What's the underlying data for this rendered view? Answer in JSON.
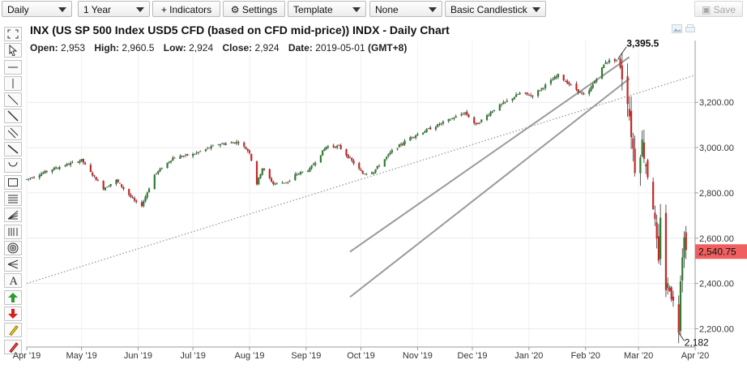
{
  "toolbar": {
    "interval": "Daily",
    "range": "1 Year",
    "indicators_label": "+ Indicators",
    "settings_label": "Settings",
    "template": "Template",
    "compare": "None",
    "chart_style": "Basic Candlestick",
    "save_label": "Save"
  },
  "header": {
    "title": "INX (US SP 500 Index USD5 CFD (based on CFD mid-price)) INDX - Daily Chart",
    "open_label": "Open:",
    "open_value": "2,953",
    "high_label": "High:",
    "high_value": "2,960.5",
    "low_label": "Low:",
    "low_value": "2,924",
    "close_label": "Close:",
    "close_value": "2,924",
    "date_label": "Date:",
    "date_value": "2019-05-01",
    "timezone": "(GMT+8)"
  },
  "drawing_tools": [
    "fullscreen-icon",
    "cursor-icon",
    "horizontal-line-icon",
    "vertical-line-icon",
    "trend-line-icon",
    "ray-icon",
    "parallel-channel-icon",
    "extended-line-icon",
    "arc-icon",
    "rectangle-icon",
    "fibonacci-retracement-icon",
    "fibonacci-fan-icon",
    "fibonacci-time-icon",
    "fibonacci-circle-icon",
    "andrews-pitchfork-icon",
    "text-icon",
    "up-arrow-icon",
    "down-arrow-icon",
    "highlighter-icon",
    "eraser-icon"
  ],
  "colors": {
    "up": "#2e7d32",
    "down": "#c62828",
    "price_tag": "#f06060",
    "channel": "#9a9a9a"
  },
  "chart_data": {
    "type": "candlestick",
    "title": "INX (US SP 500 Index USD5 CFD (based on CFD mid-price)) INDX - Daily Chart",
    "x_ticks": [
      "Apr '19",
      "May '19",
      "Jun '19",
      "Jul '19",
      "Aug '19",
      "Sep '19",
      "Oct '19",
      "Nov '19",
      "Dec '19",
      "Jan '20",
      "Feb '20",
      "Mar '20",
      "Apr '20"
    ],
    "x_tick_dates": [
      "2019-04-01",
      "2019-05-01",
      "2019-06-01",
      "2019-07-01",
      "2019-08-01",
      "2019-09-01",
      "2019-10-01",
      "2019-11-01",
      "2019-12-01",
      "2020-01-01",
      "2020-02-01",
      "2020-03-01",
      "2020-04-01"
    ],
    "y_ticks": [
      "2,200.00",
      "2,400.00",
      "2,600.00",
      "2,800.00",
      "3,000.00",
      "3,200.00"
    ],
    "y_tick_values": [
      2200,
      2400,
      2600,
      2800,
      3000,
      3200
    ],
    "ylim": [
      2130,
      3430
    ],
    "last_price": 2540.75,
    "last_price_label": "2,540.75",
    "high_annotation": "3,395.5",
    "low_annotation": "2,182",
    "path": [
      [
        "2019-04-01",
        2860
      ],
      [
        "2019-04-15",
        2905
      ],
      [
        "2019-05-01",
        2945
      ],
      [
        "2019-05-06",
        2890
      ],
      [
        "2019-05-13",
        2820
      ],
      [
        "2019-05-20",
        2855
      ],
      [
        "2019-05-31",
        2755
      ],
      [
        "2019-06-03",
        2745
      ],
      [
        "2019-06-10",
        2880
      ],
      [
        "2019-06-20",
        2955
      ],
      [
        "2019-07-01",
        2970
      ],
      [
        "2019-07-15",
        3015
      ],
      [
        "2019-07-26",
        3025
      ],
      [
        "2019-08-01",
        2980
      ],
      [
        "2019-08-05",
        2840
      ],
      [
        "2019-08-08",
        2910
      ],
      [
        "2019-08-14",
        2840
      ],
      [
        "2019-08-23",
        2850
      ],
      [
        "2019-08-26",
        2880
      ],
      [
        "2019-09-03",
        2905
      ],
      [
        "2019-09-12",
        3005
      ],
      [
        "2019-09-19",
        3005
      ],
      [
        "2019-10-02",
        2885
      ],
      [
        "2019-10-08",
        2895
      ],
      [
        "2019-10-18",
        2985
      ],
      [
        "2019-10-28",
        3045
      ],
      [
        "2019-11-15",
        3110
      ],
      [
        "2019-11-27",
        3155
      ],
      [
        "2019-12-03",
        3100
      ],
      [
        "2019-12-13",
        3170
      ],
      [
        "2019-12-27",
        3240
      ],
      [
        "2020-01-03",
        3230
      ],
      [
        "2020-01-17",
        3320
      ],
      [
        "2020-01-31",
        3230
      ],
      [
        "2020-02-03",
        3250
      ],
      [
        "2020-02-12",
        3380
      ],
      [
        "2020-02-19",
        3390
      ],
      [
        "2020-02-24",
        3225
      ],
      [
        "2020-02-28",
        2915
      ],
      [
        "2020-03-03",
        3020
      ],
      [
        "2020-03-09",
        2750
      ],
      [
        "2020-03-12",
        2480
      ],
      [
        "2020-03-13",
        2710
      ],
      [
        "2020-03-16",
        2380
      ],
      [
        "2020-03-18",
        2390
      ],
      [
        "2020-03-23",
        2200
      ],
      [
        "2020-03-24",
        2440
      ],
      [
        "2020-03-26",
        2630
      ],
      [
        "2020-03-27",
        2540
      ]
    ],
    "up_channel": [
      [
        [
          "2019-09-25",
          2340
        ],
        [
          "2020-02-25",
          3305
        ]
      ],
      [
        [
          "2019-09-25",
          2540
        ],
        [
          "2020-02-25",
          3400
        ]
      ]
    ],
    "long_trendline": [
      [
        "2019-04-01",
        2400
      ],
      [
        "2020-04-01",
        3320
      ]
    ]
  }
}
